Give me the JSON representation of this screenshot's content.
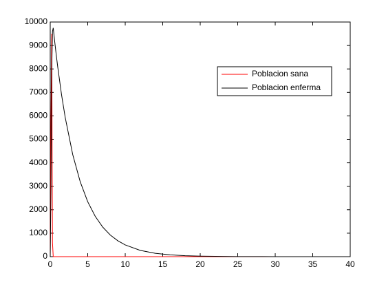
{
  "chart_data": {
    "type": "line",
    "x": [
      0,
      0.1,
      0.2,
      0.3,
      0.4,
      0.6,
      0.8,
      1,
      1.5,
      2,
      3,
      4,
      5,
      6,
      7,
      8,
      9,
      10,
      12,
      14,
      16,
      18,
      20,
      25,
      30,
      35,
      40
    ],
    "series": [
      {
        "name": "Poblacion sana",
        "color": "#ff0000",
        "values": [
          0,
          6000,
          9500,
          600,
          0,
          0,
          0,
          0,
          0,
          0,
          0,
          0,
          0,
          0,
          0,
          0,
          0,
          0,
          0,
          0,
          0,
          0,
          0,
          0,
          0,
          0,
          0
        ]
      },
      {
        "name": "Poblacion enferma",
        "color": "#000000",
        "values": [
          0,
          3000,
          8000,
          9600,
          9750,
          9160,
          8600,
          8090,
          6920,
          5930,
          4350,
          3190,
          2340,
          1720,
          1260,
          925,
          680,
          500,
          267,
          144,
          77,
          41,
          22,
          5,
          1,
          0,
          0
        ]
      }
    ],
    "xlim": [
      0,
      40
    ],
    "xticks": [
      0,
      5,
      10,
      15,
      20,
      25,
      30,
      35,
      40
    ],
    "ylim": [
      0,
      10000
    ],
    "yticks": [
      0,
      1000,
      2000,
      3000,
      4000,
      5000,
      6000,
      7000,
      8000,
      9000,
      10000
    ],
    "legend": "northeast"
  }
}
